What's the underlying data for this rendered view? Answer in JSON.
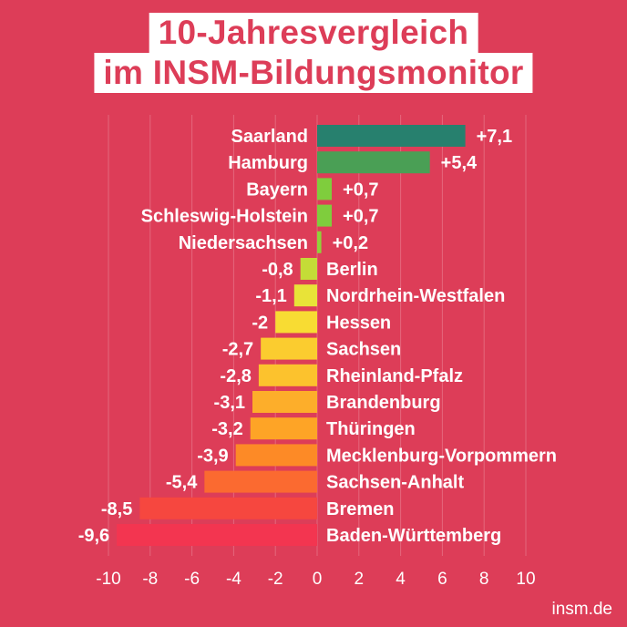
{
  "title_line1": "10-Jahresvergleich",
  "title_line2": "im INSM-Bildungsmonitor",
  "source": "insm.de",
  "background_color": "#dd3d58",
  "chart_data": {
    "type": "bar",
    "orientation": "horizontal",
    "title": "10-Jahresvergleich im INSM-Bildungsmonitor",
    "xlabel": "",
    "ylabel": "",
    "xlim": [
      -10,
      10
    ],
    "xticks": [
      -10,
      -8,
      -6,
      -4,
      -2,
      0,
      2,
      4,
      6,
      8,
      10
    ],
    "xtick_labels": [
      "-10",
      "-8",
      "-6",
      "-4",
      "-2",
      "0",
      "2",
      "4",
      "6",
      "8",
      "10"
    ],
    "grid": "vertical",
    "categories": [
      "Saarland",
      "Hamburg",
      "Bayern",
      "Schleswig-Holstein",
      "Niedersachsen",
      "Berlin",
      "Nordrhein-Westfalen",
      "Hessen",
      "Sachsen",
      "Rheinland-Pfalz",
      "Brandenburg",
      "Thüringen",
      "Mecklenburg-Vorpommern",
      "Sachsen-Anhalt",
      "Bremen",
      "Baden-Württemberg"
    ],
    "values": [
      7.1,
      5.4,
      0.7,
      0.7,
      0.2,
      -0.8,
      -1.1,
      -2,
      -2.7,
      -2.8,
      -3.1,
      -3.2,
      -3.9,
      -5.4,
      -8.5,
      -9.6
    ],
    "value_labels": [
      "+7,1",
      "+5,4",
      "+0,7",
      "+0,7",
      "+0,2",
      "-0,8",
      "-1,1",
      "-2",
      "-2,7",
      "-2,8",
      "-3,1",
      "-3,2",
      "-3,9",
      "-5,4",
      "-8,5",
      "-9,6"
    ],
    "colors": [
      "#27806e",
      "#4a9f55",
      "#7fcd3d",
      "#7fcd3d",
      "#8fd23a",
      "#c4dc37",
      "#e8e338",
      "#f8dc33",
      "#fbcc2f",
      "#fcc22d",
      "#fdae2a",
      "#fea426",
      "#fd8a26",
      "#fb6a30",
      "#f6473f",
      "#f33550"
    ]
  }
}
